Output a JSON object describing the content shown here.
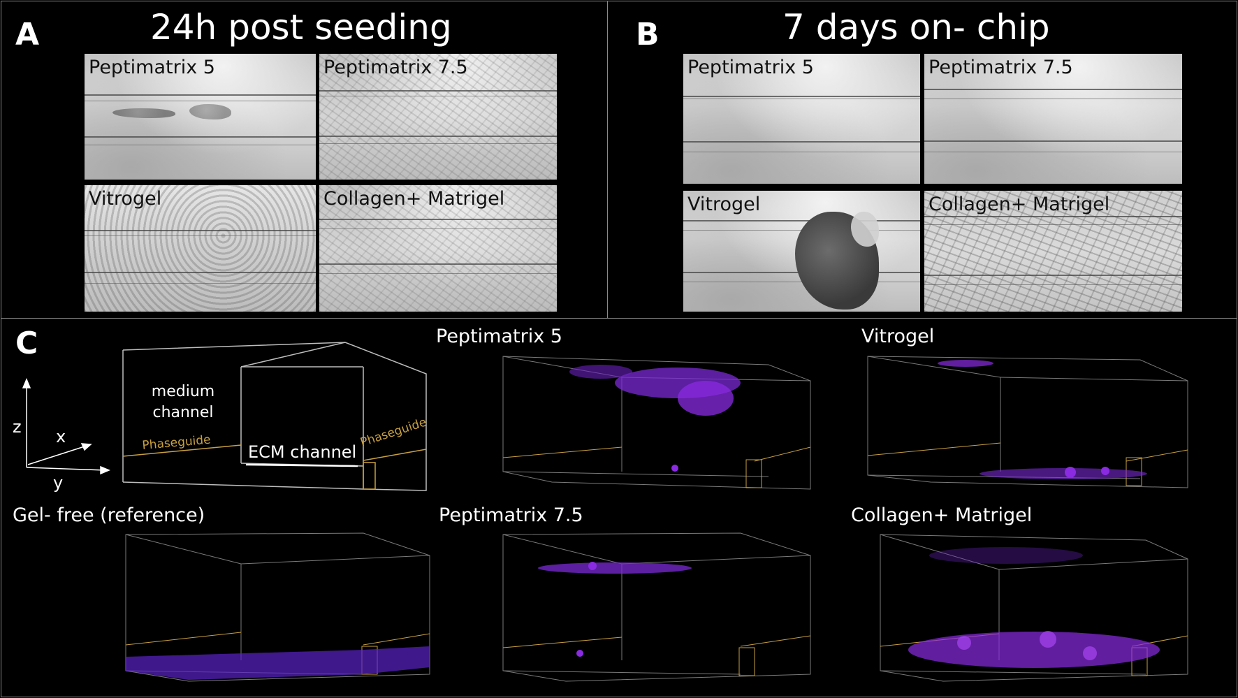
{
  "panel_a": {
    "letter": "A",
    "title": "24h post seeding",
    "tiles": [
      "Peptimatrix 5",
      "Peptimatrix 7.5",
      "Vitrogel",
      "Collagen+ Matrigel"
    ]
  },
  "panel_b": {
    "letter": "B",
    "title": "7 days on- chip",
    "tiles": [
      "Peptimatrix 5",
      "Peptimatrix 7.5",
      "Vitrogel",
      "Collagen+ Matrigel"
    ]
  },
  "panel_c": {
    "letter": "C",
    "schematic": {
      "medium_channel": "medium\nchannel",
      "ecm_channel": "ECM channel",
      "phaseguide_left": "Phaseguide",
      "phaseguide_right": "Phaseguide",
      "axis_z": "z",
      "axis_x": "x",
      "axis_y": "y"
    },
    "renders": {
      "peptimatrix5": "Peptimatrix 5",
      "vitrogel": "Vitrogel",
      "gel_free": "Gel- free (reference)",
      "peptimatrix75": "Peptimatrix 7.5",
      "collagen_matrigel": "Collagen+ Matrigel"
    },
    "colors": {
      "fluorescence": "#8a2be2",
      "phaseguide": "#c8a040",
      "box": "#9a9a9a"
    }
  }
}
